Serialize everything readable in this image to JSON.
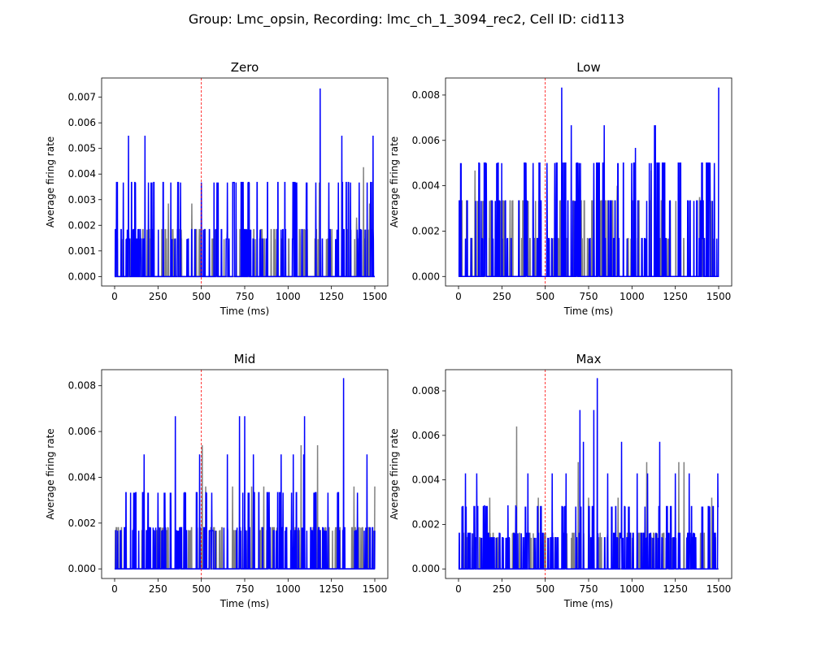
{
  "figure": {
    "suptitle": "Group: Lmc_opsin, Recording: lmc_ch_1_3094_rec2, Cell ID: cid113"
  },
  "colors": {
    "series_main": "#0000ff",
    "series_background": "#808080",
    "marker_line": "#ff0000"
  },
  "chart_data": [
    {
      "type": "line",
      "title": "Zero",
      "xlabel": "Time (ms)",
      "ylabel": "Average firing rate",
      "xlim": [
        -75,
        1575
      ],
      "ylim": [
        -0.00037,
        0.00775
      ],
      "xticks": [
        0,
        250,
        500,
        750,
        1000,
        1250,
        1500
      ],
      "yticks": [
        0.0,
        0.001,
        0.002,
        0.003,
        0.004,
        0.005,
        0.006,
        0.007
      ],
      "ytick_labels": [
        "0.000",
        "0.001",
        "0.002",
        "0.003",
        "0.004",
        "0.005",
        "0.006",
        "0.007"
      ],
      "vline_x": 500,
      "levels": [
        0.0,
        0.00146,
        0.00183,
        0.00367,
        0.0055
      ],
      "grey_peaks": [
        [
          310,
          0.00285
        ],
        [
          445,
          0.00285
        ],
        [
          730,
          0.00285
        ],
        [
          935,
          0.00183
        ],
        [
          1180,
          0.00367
        ],
        [
          1395,
          0.0023
        ],
        [
          1435,
          0.00427
        ],
        [
          1470,
          0.00285
        ]
      ],
      "blue_peaks": [
        [
          80,
          0.0055
        ],
        [
          175,
          0.0055
        ],
        [
          1185,
          0.00734
        ],
        [
          1310,
          0.0055
        ],
        [
          1490,
          0.0055
        ],
        [
          50,
          0.00367
        ],
        [
          120,
          0.00367
        ],
        [
          195,
          0.00367
        ],
        [
          215,
          0.00367
        ],
        [
          380,
          0.00367
        ],
        [
          500,
          0.00367
        ],
        [
          590,
          0.00367
        ],
        [
          650,
          0.00367
        ],
        [
          1050,
          0.00367
        ],
        [
          1105,
          0.00367
        ],
        [
          1160,
          0.00367
        ],
        [
          1235,
          0.00367
        ],
        [
          1290,
          0.00367
        ],
        [
          1360,
          0.00367
        ],
        [
          1410,
          0.00367
        ]
      ],
      "series": [
        {
          "name": "",
          "color_key": "series_background"
        },
        {
          "name": "",
          "color_key": "series_main"
        }
      ]
    },
    {
      "type": "line",
      "title": "Low",
      "xlabel": "Time (ms)",
      "ylabel": "Average firing rate",
      "xlim": [
        -75,
        1575
      ],
      "ylim": [
        -0.00042,
        0.00875
      ],
      "xticks": [
        0,
        250,
        500,
        750,
        1000,
        1250,
        1500
      ],
      "yticks": [
        0.0,
        0.002,
        0.004,
        0.006,
        0.008
      ],
      "ytick_labels": [
        "0.000",
        "0.002",
        "0.004",
        "0.006",
        "0.008"
      ],
      "vline_x": 500,
      "levels": [
        0.0,
        0.00167,
        0.00333,
        0.005
      ],
      "grey_peaks": [
        [
          95,
          0.00467
        ],
        [
          180,
          0.003
        ],
        [
          310,
          0.003
        ],
        [
          725,
          0.00333
        ],
        [
          915,
          0.004
        ],
        [
          1110,
          0.00467
        ],
        [
          1220,
          0.0013
        ],
        [
          1390,
          0.0035
        ]
      ],
      "blue_peaks": [
        [
          595,
          0.00833
        ],
        [
          1500,
          0.00833
        ],
        [
          650,
          0.00667
        ],
        [
          840,
          0.00667
        ],
        [
          1135,
          0.00667
        ],
        [
          1130,
          0.00667
        ],
        [
          1020,
          0.00567
        ],
        [
          1280,
          0.005
        ],
        [
          160,
          0.005
        ],
        [
          430,
          0.005
        ],
        [
          510,
          0.005
        ],
        [
          555,
          0.005
        ],
        [
          695,
          0.005
        ],
        [
          780,
          0.005
        ],
        [
          1450,
          0.005
        ],
        [
          1475,
          0.005
        ],
        [
          5,
          0.00333
        ],
        [
          50,
          0.00333
        ],
        [
          270,
          0.00333
        ],
        [
          475,
          0.00333
        ],
        [
          880,
          0.00333
        ],
        [
          1000,
          0.00333
        ],
        [
          1180,
          0.00333
        ],
        [
          1335,
          0.00333
        ]
      ],
      "series": [
        {
          "name": "",
          "color_key": "series_background"
        },
        {
          "name": "",
          "color_key": "series_main"
        }
      ]
    },
    {
      "type": "line",
      "title": "Mid",
      "xlabel": "Time (ms)",
      "ylabel": "Average firing rate",
      "xlim": [
        -75,
        1575
      ],
      "ylim": [
        -0.00042,
        0.0087
      ],
      "xticks": [
        0,
        250,
        500,
        750,
        1000,
        1250,
        1500
      ],
      "yticks": [
        0.0,
        0.002,
        0.004,
        0.006,
        0.008
      ],
      "ytick_labels": [
        "0.000",
        "0.002",
        "0.004",
        "0.006",
        "0.008"
      ],
      "vline_x": 500,
      "levels": [
        0.0,
        0.00167,
        0.0018,
        0.00333
      ],
      "grey_peaks": [
        [
          10,
          0.0018
        ],
        [
          505,
          0.0054
        ],
        [
          525,
          0.0036
        ],
        [
          680,
          0.0036
        ],
        [
          790,
          0.0036
        ],
        [
          860,
          0.0036
        ],
        [
          1075,
          0.0054
        ],
        [
          1170,
          0.0054
        ],
        [
          1380,
          0.0036
        ],
        [
          1500,
          0.0036
        ]
      ],
      "blue_peaks": [
        [
          1320,
          0.00833
        ],
        [
          350,
          0.00667
        ],
        [
          720,
          0.00667
        ],
        [
          750,
          0.00667
        ],
        [
          1095,
          0.00667
        ],
        [
          170,
          0.005
        ],
        [
          490,
          0.005
        ],
        [
          650,
          0.005
        ],
        [
          800,
          0.005
        ],
        [
          960,
          0.005
        ],
        [
          1030,
          0.005
        ],
        [
          1090,
          0.005
        ],
        [
          1455,
          0.005
        ],
        [
          110,
          0.00333
        ],
        [
          250,
          0.00333
        ],
        [
          290,
          0.00333
        ],
        [
          400,
          0.00333
        ],
        [
          560,
          0.00333
        ],
        [
          880,
          0.00333
        ],
        [
          1230,
          0.00333
        ],
        [
          1400,
          0.00333
        ]
      ],
      "series": [
        {
          "name": "",
          "color_key": "series_background"
        },
        {
          "name": "",
          "color_key": "series_main"
        }
      ]
    },
    {
      "type": "line",
      "title": "Max",
      "xlabel": "Time (ms)",
      "ylabel": "Average firing rate",
      "xlim": [
        -75,
        1575
      ],
      "ylim": [
        -0.00043,
        0.00895
      ],
      "xticks": [
        0,
        250,
        500,
        750,
        1000,
        1250,
        1500
      ],
      "yticks": [
        0.0,
        0.002,
        0.004,
        0.006,
        0.008
      ],
      "ytick_labels": [
        "0.000",
        "0.002",
        "0.004",
        "0.006",
        "0.008"
      ],
      "vline_x": 500,
      "levels": [
        0.0,
        0.0014,
        0.0016,
        0.0028
      ],
      "grey_peaks": [
        [
          335,
          0.0064
        ],
        [
          180,
          0.0032
        ],
        [
          460,
          0.0032
        ],
        [
          690,
          0.0048
        ],
        [
          750,
          0.0032
        ],
        [
          920,
          0.0032
        ],
        [
          1085,
          0.0048
        ],
        [
          1270,
          0.0048
        ],
        [
          1300,
          0.0048
        ],
        [
          1460,
          0.0032
        ]
      ],
      "blue_peaks": [
        [
          800,
          0.00857
        ],
        [
          700,
          0.00714
        ],
        [
          780,
          0.00714
        ],
        [
          720,
          0.00571
        ],
        [
          940,
          0.00571
        ],
        [
          1160,
          0.00571
        ],
        [
          1030,
          0.00429
        ],
        [
          1250,
          0.00429
        ],
        [
          1090,
          0.00429
        ],
        [
          1330,
          0.00429
        ],
        [
          1495,
          0.00429
        ],
        [
          40,
          0.00429
        ],
        [
          105,
          0.00429
        ],
        [
          400,
          0.00429
        ],
        [
          540,
          0.00429
        ],
        [
          620,
          0.00429
        ],
        [
          860,
          0.00429
        ],
        [
          330,
          0.00286
        ],
        [
          285,
          0.00286
        ],
        [
          150,
          0.00286
        ]
      ],
      "series": [
        {
          "name": "",
          "color_key": "series_background"
        },
        {
          "name": "",
          "color_key": "series_main"
        }
      ]
    }
  ]
}
